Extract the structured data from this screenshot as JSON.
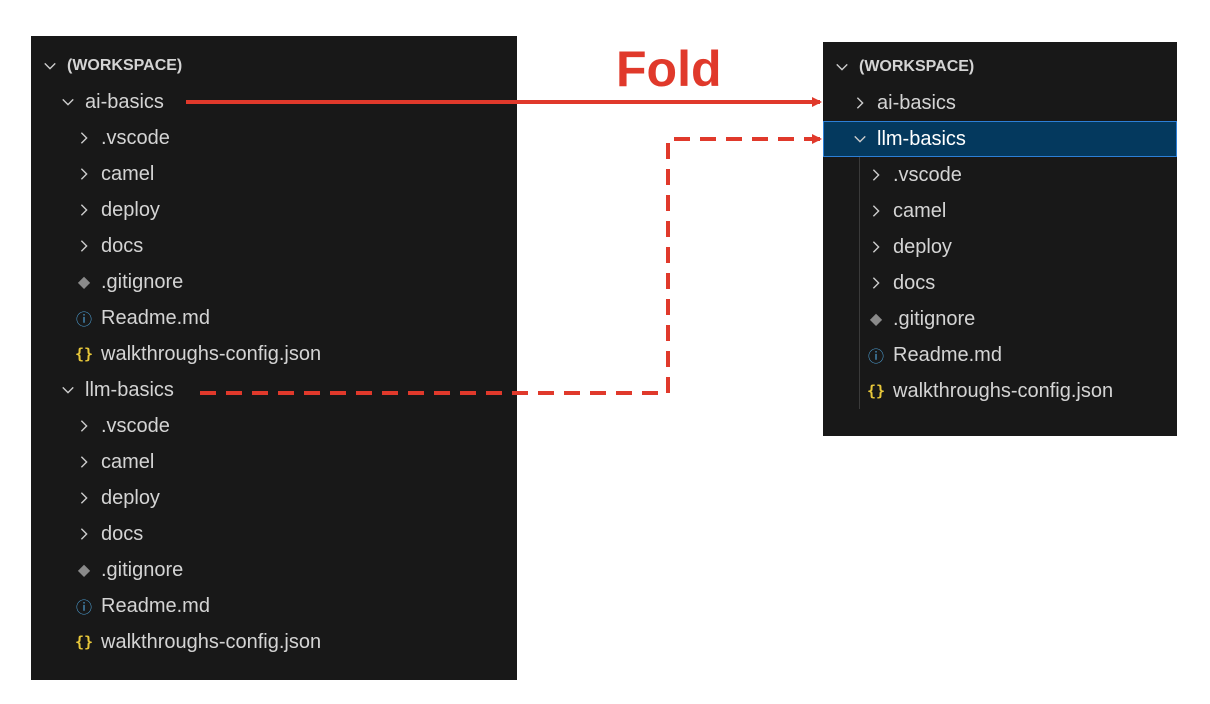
{
  "annotation": {
    "fold_label": "Fold"
  },
  "left_tree": {
    "header": "(WORKSPACE)",
    "folders": [
      {
        "name": "ai-basics",
        "children": [
          {
            "type": "folder",
            "name": ".vscode"
          },
          {
            "type": "folder",
            "name": "camel"
          },
          {
            "type": "folder",
            "name": "deploy"
          },
          {
            "type": "folder",
            "name": "docs"
          },
          {
            "type": "file",
            "icon": "git-icon",
            "name": ".gitignore"
          },
          {
            "type": "file",
            "icon": "info-icon",
            "name": "Readme.md"
          },
          {
            "type": "file",
            "icon": "json-icon",
            "name": "walkthroughs-config.json"
          }
        ]
      },
      {
        "name": "llm-basics",
        "children": [
          {
            "type": "folder",
            "name": ".vscode"
          },
          {
            "type": "folder",
            "name": "camel"
          },
          {
            "type": "folder",
            "name": "deploy"
          },
          {
            "type": "folder",
            "name": "docs"
          },
          {
            "type": "file",
            "icon": "git-icon",
            "name": ".gitignore"
          },
          {
            "type": "file",
            "icon": "info-icon",
            "name": "Readme.md"
          },
          {
            "type": "file",
            "icon": "json-icon",
            "name": "walkthroughs-config.json"
          }
        ]
      }
    ]
  },
  "right_tree": {
    "header": "(WORKSPACE)",
    "folders": [
      {
        "name": "ai-basics",
        "expanded": false
      },
      {
        "name": "llm-basics",
        "expanded": true,
        "selected": true,
        "children": [
          {
            "type": "folder",
            "name": ".vscode"
          },
          {
            "type": "folder",
            "name": "camel"
          },
          {
            "type": "folder",
            "name": "deploy"
          },
          {
            "type": "folder",
            "name": "docs"
          },
          {
            "type": "file",
            "icon": "git-icon",
            "name": ".gitignore"
          },
          {
            "type": "file",
            "icon": "info-icon",
            "name": "Readme.md"
          },
          {
            "type": "file",
            "icon": "json-icon",
            "name": "walkthroughs-config.json"
          }
        ]
      }
    ]
  },
  "colors": {
    "arrow": "#e0392b",
    "panel_bg": "#181818",
    "selection_bg": "#04395e",
    "selection_border": "#2c7fd6"
  }
}
